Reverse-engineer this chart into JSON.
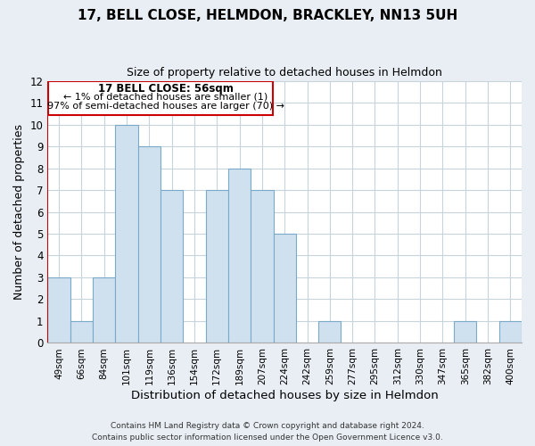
{
  "title": "17, BELL CLOSE, HELMDON, BRACKLEY, NN13 5UH",
  "subtitle": "Size of property relative to detached houses in Helmdon",
  "xlabel": "Distribution of detached houses by size in Helmdon",
  "ylabel": "Number of detached properties",
  "bins": [
    "49sqm",
    "66sqm",
    "84sqm",
    "101sqm",
    "119sqm",
    "136sqm",
    "154sqm",
    "172sqm",
    "189sqm",
    "207sqm",
    "224sqm",
    "242sqm",
    "259sqm",
    "277sqm",
    "295sqm",
    "312sqm",
    "330sqm",
    "347sqm",
    "365sqm",
    "382sqm",
    "400sqm"
  ],
  "counts": [
    3,
    1,
    3,
    10,
    9,
    7,
    0,
    7,
    8,
    7,
    5,
    0,
    1,
    0,
    0,
    0,
    0,
    0,
    1,
    0,
    1
  ],
  "bar_color": "#cfe0ef",
  "bar_edgecolor": "#7aaac8",
  "annotation_line1": "17 BELL CLOSE: 56sqm",
  "annotation_line2": "← 1% of detached houses are smaller (1)",
  "annotation_line3": "97% of semi-detached houses are larger (70) →",
  "red_line_x": -0.5,
  "ylim": [
    0,
    12
  ],
  "yticks": [
    0,
    1,
    2,
    3,
    4,
    5,
    6,
    7,
    8,
    9,
    10,
    11,
    12
  ],
  "footer1": "Contains HM Land Registry data © Crown copyright and database right 2024.",
  "footer2": "Contains public sector information licensed under the Open Government Licence v3.0.",
  "background_color": "#e8eef4",
  "plot_background_color": "#ffffff",
  "grid_color": "#c8d4dc"
}
